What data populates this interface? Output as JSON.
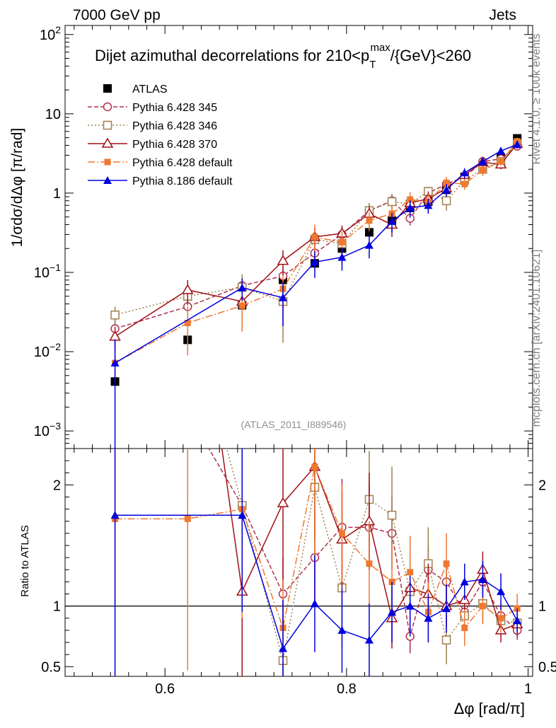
{
  "header": {
    "left": "7000 GeV pp",
    "right": "Jets"
  },
  "side_labels": {
    "rivet": "Rivet 4.1.0, ≥ 100k events",
    "mcplots": "mcplots.cern.ch [arXiv:2401.10621]"
  },
  "chart_data": {
    "type": "line",
    "title": "Dijet azimuthal decorrelations for 210<p_T^max/{GeV}<260",
    "title_parts": {
      "prefix": "Dijet azimuthal decorrelations for 210<p",
      "sub": "T",
      "sup": "max",
      "suffix": "/{GeV}<260"
    },
    "analysis_id": "(ATLAS_2011_I889546)",
    "xlabel": "Δφ [rad/π]",
    "ylabel": "1/σdσ/dΔφ [π/rad]",
    "ratio_ylabel": "Ratio to ATLAS",
    "xlim": [
      0.49,
      1.005
    ],
    "ylim": [
      0.0006,
      130
    ],
    "yscale": "log",
    "ratio_ylim": [
      0.42,
      2.3
    ],
    "x_ticks": [
      0.6,
      0.8,
      1.0
    ],
    "x_tick_labels": [
      "0.6",
      "0.8",
      "1"
    ],
    "y_ticks": [
      {
        "value": 0.001,
        "base": "10",
        "exp": "−3"
      },
      {
        "value": 0.01,
        "base": "10",
        "exp": "−2"
      },
      {
        "value": 0.1,
        "base": "10",
        "exp": "−1"
      },
      {
        "value": 1,
        "base": "1",
        "exp": ""
      },
      {
        "value": 10,
        "base": "10",
        "exp": ""
      },
      {
        "value": 100,
        "base": "10",
        "exp": "2"
      }
    ],
    "ratio_ticks": [
      {
        "value": 0.5,
        "label": "0.5"
      },
      {
        "value": 1,
        "label": "1"
      },
      {
        "value": 2,
        "label": "2"
      }
    ],
    "legend_position": "top-left",
    "x": [
      0.545,
      0.625,
      0.685,
      0.73,
      0.765,
      0.795,
      0.825,
      0.85,
      0.87,
      0.89,
      0.91,
      0.93,
      0.95,
      0.97,
      0.988
    ],
    "series": [
      {
        "name": "ATLAS",
        "color": "#000000",
        "marker": "filled-square",
        "dash": "none",
        "values": [
          0.0042,
          0.0141,
          0.0385,
          0.0805,
          0.13,
          0.2,
          0.32,
          0.45,
          0.65,
          0.78,
          1.1,
          1.6,
          2.0,
          2.8,
          4.9
        ],
        "err": [
          0,
          0,
          0,
          0,
          0,
          0,
          0,
          0,
          0,
          0,
          0,
          0,
          0,
          0,
          0
        ]
      },
      {
        "name": "Pythia 6.428 345",
        "color": "#b03050",
        "marker": "open-circle",
        "dash": "6,3",
        "values": [
          0.0195,
          0.037,
          0.068,
          0.09,
          0.175,
          0.3,
          0.6,
          0.8,
          0.48,
          1.0,
          1.3,
          1.6,
          2.5,
          2.7,
          3.9
        ],
        "err": [
          0.006,
          0.009,
          0.016,
          0.02,
          0.05,
          0.07,
          0.11,
          0.15,
          0.09,
          0.15,
          0.2,
          0.2,
          0.3,
          0.3,
          0.4
        ],
        "ratio": [
          4.6,
          2.6,
          1.83,
          1.1,
          1.4,
          1.65,
          1.65,
          1.6,
          0.75,
          1.3,
          1.2,
          0.95,
          1.2,
          0.92,
          0.8
        ],
        "ratio_err": [
          1.5,
          0.7,
          0.4,
          0.3,
          0.4,
          0.4,
          0.35,
          0.3,
          0.14,
          0.2,
          0.18,
          0.13,
          0.15,
          0.1,
          0.08
        ]
      },
      {
        "name": "Pythia 6.428 346",
        "color": "#a08050",
        "marker": "open-square",
        "dash": "2,3",
        "values": [
          0.029,
          0.05,
          0.065,
          0.043,
          0.26,
          0.23,
          0.6,
          0.78,
          0.73,
          1.05,
          0.8,
          1.45,
          2.0,
          2.5,
          4.2
        ],
        "err": [
          0.008,
          0.012,
          0.03,
          0.03,
          0.1,
          0.1,
          0.15,
          0.2,
          0.2,
          0.15,
          0.2,
          0.2,
          0.3,
          0.3,
          0.5
        ],
        "ratio": [
          6.8,
          3.5,
          1.83,
          0.55,
          1.98,
          1.15,
          1.88,
          1.75,
          1.12,
          1.35,
          0.72,
          0.92,
          1.02,
          0.88,
          0.86
        ],
        "ratio_err": [
          2.0,
          1.0,
          0.8,
          0.4,
          0.8,
          0.5,
          0.4,
          0.4,
          0.3,
          0.3,
          0.2,
          0.14,
          0.15,
          0.1,
          0.1
        ]
      },
      {
        "name": "Pythia 6.428 370",
        "color": "#a01018",
        "marker": "open-triangle",
        "dash": "none",
        "values": [
          0.0155,
          0.06,
          0.043,
          0.14,
          0.28,
          0.31,
          0.55,
          0.4,
          0.75,
          0.85,
          1.15,
          1.7,
          2.45,
          2.3,
          4.2
        ],
        "err": [
          0.005,
          0.02,
          0.025,
          0.05,
          0.08,
          0.08,
          0.12,
          0.12,
          0.18,
          0.2,
          0.2,
          0.25,
          0.3,
          0.3,
          0.5
        ],
        "ratio": [
          3.7,
          4.3,
          1.12,
          1.85,
          2.15,
          1.55,
          1.7,
          0.9,
          1.15,
          1.1,
          1.0,
          1.05,
          1.3,
          0.8,
          0.85
        ],
        "ratio_err": [
          1.0,
          1.5,
          0.7,
          0.7,
          0.6,
          0.4,
          0.4,
          0.25,
          0.27,
          0.25,
          0.18,
          0.15,
          0.15,
          0.1,
          0.1
        ]
      },
      {
        "name": "Pythia 6.428 default",
        "color": "#f07830",
        "marker": "filled-square-small",
        "dash": "10,3,2,3",
        "values": [
          0.0072,
          0.023,
          0.038,
          0.062,
          0.28,
          0.24,
          0.45,
          0.55,
          0.83,
          0.78,
          1.35,
          1.3,
          1.95,
          2.5,
          4.5
        ],
        "err": [
          0.003,
          0.014,
          0.02,
          0.03,
          0.12,
          0.09,
          0.12,
          0.15,
          0.2,
          0.2,
          0.25,
          0.2,
          0.3,
          0.3,
          0.5
        ],
        "ratio": [
          1.72,
          1.72,
          1.8,
          0.82,
          2.15,
          1.6,
          1.35,
          1.2,
          1.28,
          0.95,
          1.35,
          0.82,
          1.0,
          0.9,
          0.98
        ],
        "ratio_err": [
          0.7,
          1.25,
          0.9,
          0.4,
          0.9,
          0.4,
          0.35,
          0.3,
          0.3,
          0.25,
          0.25,
          0.15,
          0.15,
          0.12,
          0.12
        ]
      },
      {
        "name": "Pythia 8.186 default",
        "color": "#0000e0",
        "marker": "filled-triangle",
        "dash": "none",
        "values": [
          0.0072,
          0.0,
          0.064,
          0.048,
          0.135,
          0.155,
          0.22,
          0.44,
          0.65,
          0.7,
          1.1,
          1.8,
          2.5,
          3.4,
          4.1
        ],
        "err": [
          0.0071,
          0.0,
          0.02,
          0.027,
          0.05,
          0.05,
          0.07,
          0.12,
          0.16,
          0.15,
          0.2,
          0.25,
          0.3,
          0.35,
          0.45
        ],
        "ratio": [
          1.75,
          null,
          1.75,
          0.65,
          1.02,
          0.8,
          0.72,
          0.95,
          1.0,
          0.9,
          0.98,
          1.2,
          1.22,
          1.12,
          0.88
        ],
        "ratio_err": [
          1.7,
          null,
          0.8,
          0.4,
          0.4,
          0.35,
          0.3,
          0.25,
          0.25,
          0.2,
          0.2,
          0.15,
          0.15,
          0.15,
          0.1
        ]
      }
    ]
  }
}
